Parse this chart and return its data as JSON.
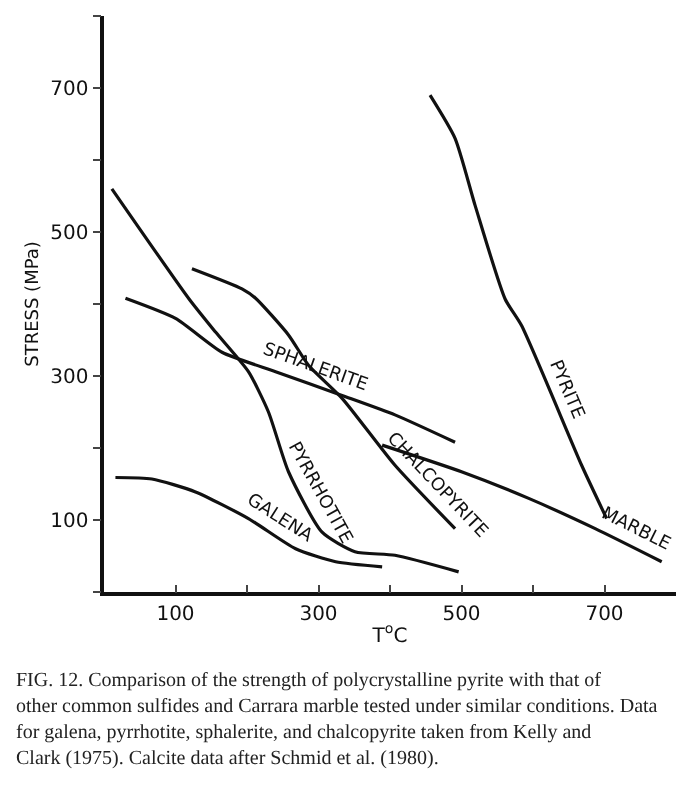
{
  "chart_data": {
    "type": "line",
    "xlabel": "T$^{o}$C",
    "ylabel": "STRESS (MPa)",
    "xlim": [
      0,
      800
    ],
    "ylim": [
      0,
      800
    ],
    "xticks": [
      100,
      {
        "value": 200,
        "label": null
      },
      300,
      {
        "value": 400,
        "label": null
      },
      500,
      {
        "value": 600,
        "label": null
      },
      700
    ],
    "yticks": [
      {
        "value": 0,
        "label": null
      },
      100,
      {
        "value": 200,
        "label": null
      },
      300,
      {
        "value": 400,
        "label": null
      },
      500,
      {
        "value": 600,
        "label": null
      },
      700,
      {
        "value": 800,
        "label": null
      }
    ],
    "grid": false,
    "legend": false,
    "marker": "none",
    "line_style": "solid",
    "series": [
      {
        "name": "PYRITE",
        "color": "#111111",
        "x": [
          456,
          491,
          519,
          561,
          584,
          668,
          703
        ],
        "values": [
          690,
          630,
          537,
          407,
          370,
          176,
          102
        ]
      },
      {
        "name": "PYRRHOTITE",
        "color": "#111111",
        "x": [
          11,
          119,
          156,
          202,
          230,
          258,
          305,
          351,
          407,
          496
        ],
        "values": [
          560,
          407,
          361,
          306,
          250,
          167,
          83,
          56,
          51,
          28
        ]
      },
      {
        "name": "CHALCOPYRITE",
        "color": "#111111",
        "x": [
          123,
          193,
          212,
          258,
          286,
          333,
          407,
          491
        ],
        "values": [
          449,
          421,
          408,
          357,
          315,
          269,
          176,
          88
        ]
      },
      {
        "name": "SPHALERITE",
        "color": "#111111",
        "x": [
          30,
          100,
          165,
          240,
          333,
          407,
          491
        ],
        "values": [
          408,
          380,
          333,
          306,
          273,
          246,
          208
        ]
      },
      {
        "name": "MARBLE",
        "color": "#111111",
        "x": [
          389,
          500,
          594,
          687,
          780
        ],
        "values": [
          204,
          167,
          130,
          88,
          42
        ]
      },
      {
        "name": "GALENA",
        "color": "#111111",
        "x": [
          16,
          67,
          128,
          202,
          268,
          324,
          389
        ],
        "values": [
          159,
          157,
          139,
          102,
          60,
          42,
          35
        ]
      }
    ],
    "annotations": [
      "FIG. 12. Comparison of the strength of polycrystalline pyrite with that of other common sulfides and Carrara marble tested under similar conditions. Data for galena, pyrrhotite, sphalerite, and chalcopyrite taken from Kelly and Clark (1975). Calcite data after Schmid et al. (1980)."
    ]
  }
}
